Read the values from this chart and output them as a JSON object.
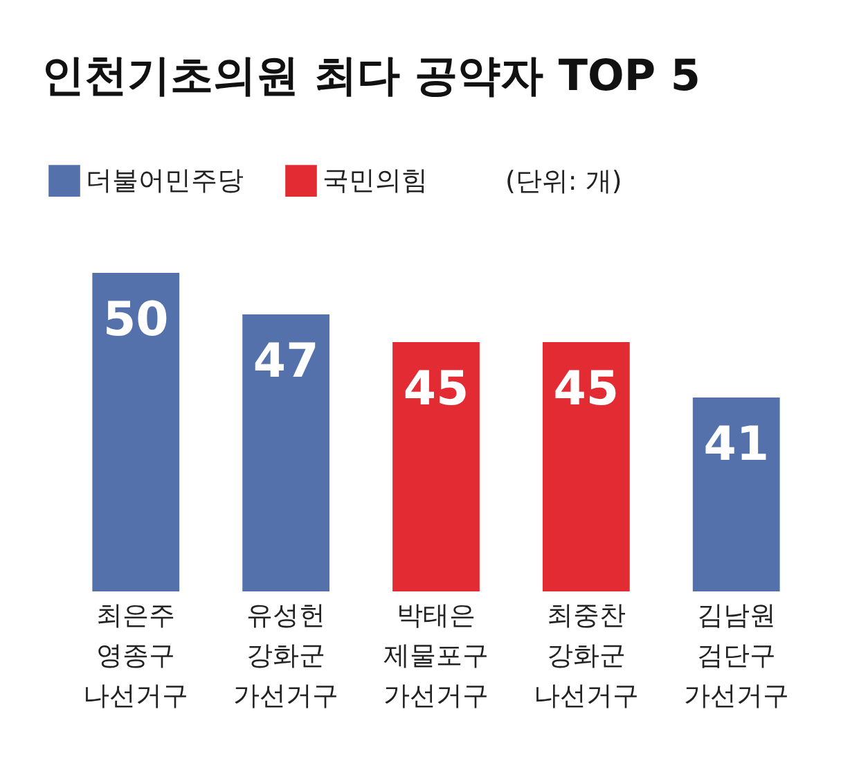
{
  "chart_data": {
    "type": "bar",
    "title": "인천기초의원 최다 공약자 TOP 5",
    "categories": [
      "최은주\n영종구\n나선거구",
      "유성헌\n강화군\n가선거구",
      "박태은\n제물포구\n가선거구",
      "최중찬\n강화군\n나선거구",
      "김남원\n검단구\n가선거구"
    ],
    "series": [
      {
        "name": "더불어민주당",
        "color": "#5471ab",
        "values": [
          50,
          47,
          null,
          null,
          41
        ]
      },
      {
        "name": "국민의힘",
        "color": "#e32b33",
        "values": [
          null,
          null,
          45,
          45,
          null
        ]
      }
    ],
    "ylim": [
      27,
      50
    ],
    "tick_labels": "x",
    "data_labels": true,
    "legend": "top left",
    "grid": false,
    "annotations": [
      "(단위: 개)"
    ]
  }
}
